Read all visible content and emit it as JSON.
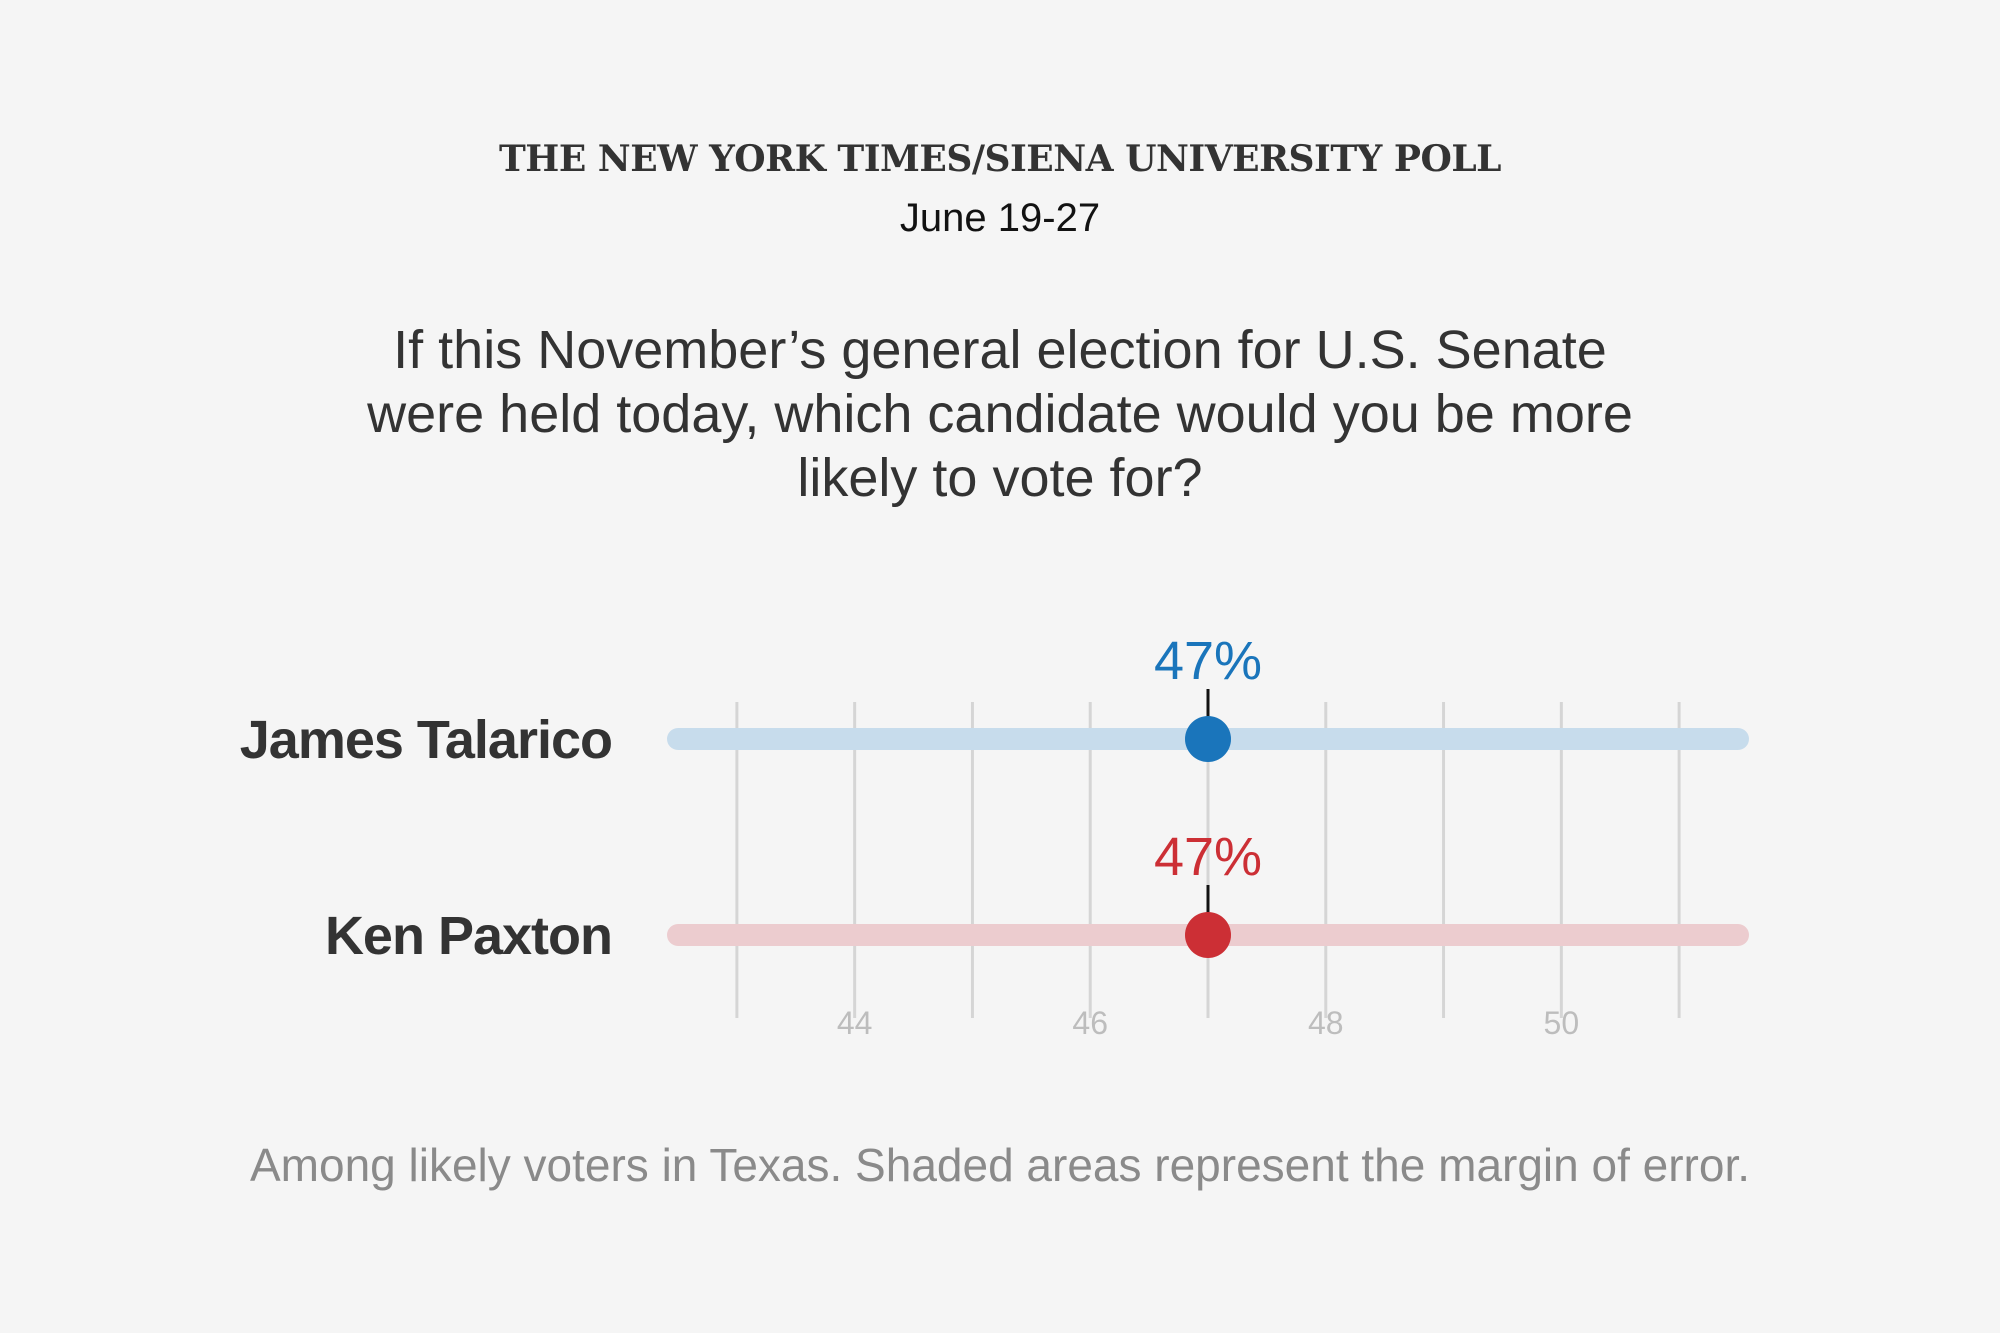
{
  "header": {
    "kicker": "THE NEW YORK TIMES/SIENA UNIVERSITY POLL",
    "date": "June 19-27"
  },
  "question": "If this November’s general election for U.S. Senate were held today, which candidate would you be more likely to vote for?",
  "note": "Among likely voters in Texas. Shaded areas represent the margin of error.",
  "chart_data": {
    "type": "scatter",
    "title": "",
    "xlabel": "",
    "ylabel": "",
    "xlim": [
      42.5,
      51.5
    ],
    "ticks": [
      44,
      46,
      48,
      50
    ],
    "gridlines": [
      43,
      44,
      45,
      46,
      47,
      48,
      49,
      50,
      51
    ],
    "grid": true,
    "series": [
      {
        "name": "James Talarico",
        "value": 47,
        "label": "47%",
        "range": [
          42.5,
          51.5
        ],
        "color": "#1a75bb",
        "band_color": "#c7dcec"
      },
      {
        "name": "Ken Paxton",
        "value": 47,
        "label": "47%",
        "range": [
          42.5,
          51.5
        ],
        "color": "#cc2f35",
        "band_color": "#eccccf"
      }
    ]
  }
}
